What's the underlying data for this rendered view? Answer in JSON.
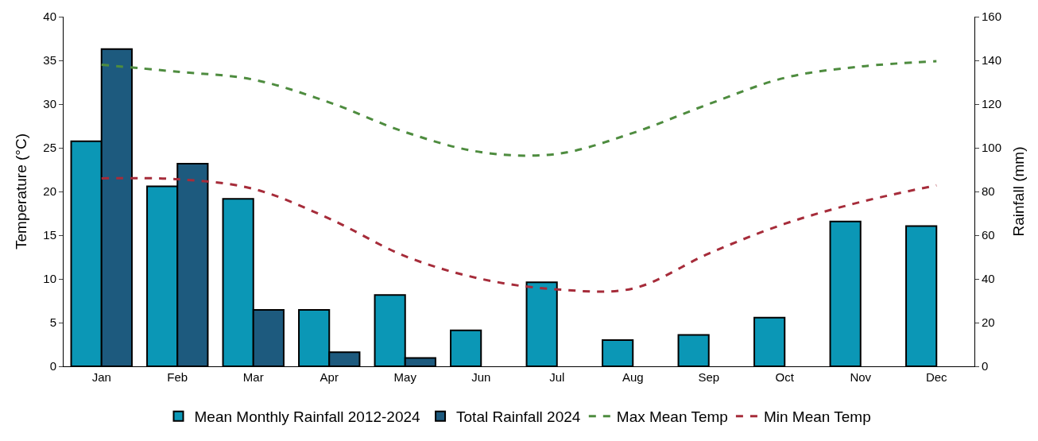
{
  "chart_data": {
    "type": "bar",
    "categories": [
      "Jan",
      "Feb",
      "Mar",
      "Apr",
      "May",
      "Jun",
      "Jul",
      "Aug",
      "Sep",
      "Oct",
      "Nov",
      "Dec"
    ],
    "ylabel": "Temperature (°C)",
    "y2label": "Rainfall (mm)",
    "ylim": [
      0,
      40
    ],
    "yticks": [
      0,
      5,
      10,
      15,
      20,
      25,
      30,
      35,
      40
    ],
    "y2lim": [
      0,
      160
    ],
    "y2ticks": [
      0,
      20,
      40,
      60,
      80,
      100,
      120,
      140,
      160
    ],
    "legend": "bottom",
    "line_style": "dashed",
    "marker": "none",
    "series": [
      {
        "name": "Mean Monthly Rainfall 2012-2024",
        "axis": "y2",
        "color": "#0b97b6",
        "values": [
          103,
          82.4,
          76.6,
          25.8,
          32.6,
          16.5,
          38.5,
          12,
          14.4,
          22.3,
          66.3,
          64.2
        ]
      },
      {
        "name": "Total Rainfall 2024",
        "axis": "y2",
        "color": "#1d5a7e",
        "values": [
          145.2,
          92.7,
          25.8,
          6.5,
          3.8,
          null,
          null,
          null,
          null,
          null,
          null,
          null
        ]
      },
      {
        "name": "Max Mean Temp",
        "type": "line",
        "color": "#4e8c3f",
        "values": [
          34.5,
          33.7,
          32.8,
          30.2,
          26.8,
          24.5,
          24.3,
          26.7,
          30.0,
          33.0,
          34.3,
          34.9
        ]
      },
      {
        "name": "Min Mean Temp",
        "type": "line",
        "color": "#a62c3a",
        "values": [
          21.5,
          21.4,
          20.3,
          16.9,
          12.6,
          10.0,
          8.8,
          8.9,
          12.9,
          16.3,
          18.8,
          20.7
        ]
      }
    ]
  }
}
